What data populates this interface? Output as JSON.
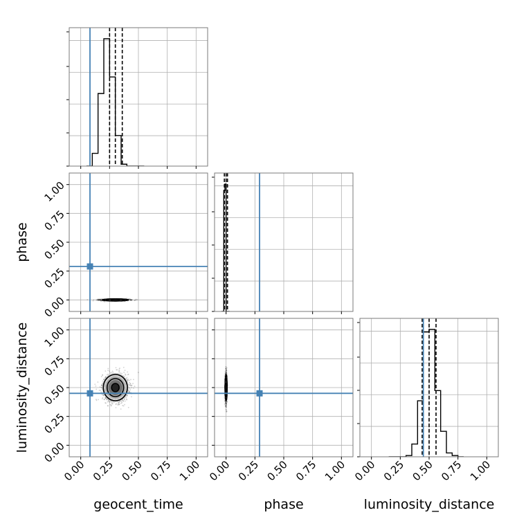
{
  "chart_data": {
    "type": "corner",
    "parameters": [
      "geocent_time",
      "phase",
      "luminosity_distance"
    ],
    "axis_range": [
      -0.1,
      1.1
    ],
    "tick_values": [
      0.0,
      0.25,
      0.5,
      0.75,
      1.0
    ],
    "tick_labels": [
      "0.00",
      "0.25",
      "0.50",
      "0.75",
      "1.00"
    ],
    "x_axis_labels": [
      "geocent_time",
      "phase",
      "luminosity_distance"
    ],
    "y_axis_labels": [
      "",
      "phase",
      "luminosity_distance"
    ],
    "truth_values": [
      0.08,
      0.29,
      0.45
    ],
    "truth_color": "#4682b4",
    "grid": true,
    "marginals": [
      {
        "name": "geocent_time",
        "bin_edges": [
          0.05,
          0.1,
          0.15,
          0.2,
          0.25,
          0.3,
          0.35,
          0.4,
          0.45,
          0.5,
          0.55
        ],
        "counts": [
          0,
          0.1,
          0.57,
          1.0,
          0.7,
          0.24,
          0.015,
          0,
          0,
          0
        ],
        "quantiles": [
          0.25,
          0.3,
          0.36
        ]
      },
      {
        "name": "phase",
        "bin_edges": [
          -0.04,
          -0.03,
          -0.02,
          -0.01,
          0.0,
          0.01,
          0.02,
          0.03
        ],
        "counts": [
          0,
          0,
          0.95,
          1.0,
          0,
          0,
          0
        ],
        "quantiles": [
          -0.015,
          0.0,
          0.012
        ]
      },
      {
        "name": "luminosity_distance",
        "bin_edges": [
          0.15,
          0.2,
          0.25,
          0.3,
          0.35,
          0.4,
          0.45,
          0.5,
          0.55,
          0.6,
          0.65,
          0.7,
          0.75,
          0.8
        ],
        "counts": [
          0,
          0,
          0,
          0.01,
          0.1,
          0.44,
          0.98,
          1.0,
          0.52,
          0.2,
          0.03,
          0.01,
          0
        ],
        "quantiles": [
          0.44,
          0.5,
          0.56
        ]
      }
    ],
    "joint_2d": [
      {
        "x_param": "geocent_time",
        "y_param": "phase",
        "center": [
          0.3,
          0.0
        ],
        "spread": [
          0.06,
          0.004
        ]
      },
      {
        "x_param": "geocent_time",
        "y_param": "luminosity_distance",
        "center": [
          0.3,
          0.5
        ],
        "spread": [
          0.055,
          0.06
        ]
      },
      {
        "x_param": "phase",
        "y_param": "luminosity_distance",
        "center": [
          0.0,
          0.5
        ],
        "spread": [
          0.004,
          0.06
        ]
      }
    ]
  }
}
